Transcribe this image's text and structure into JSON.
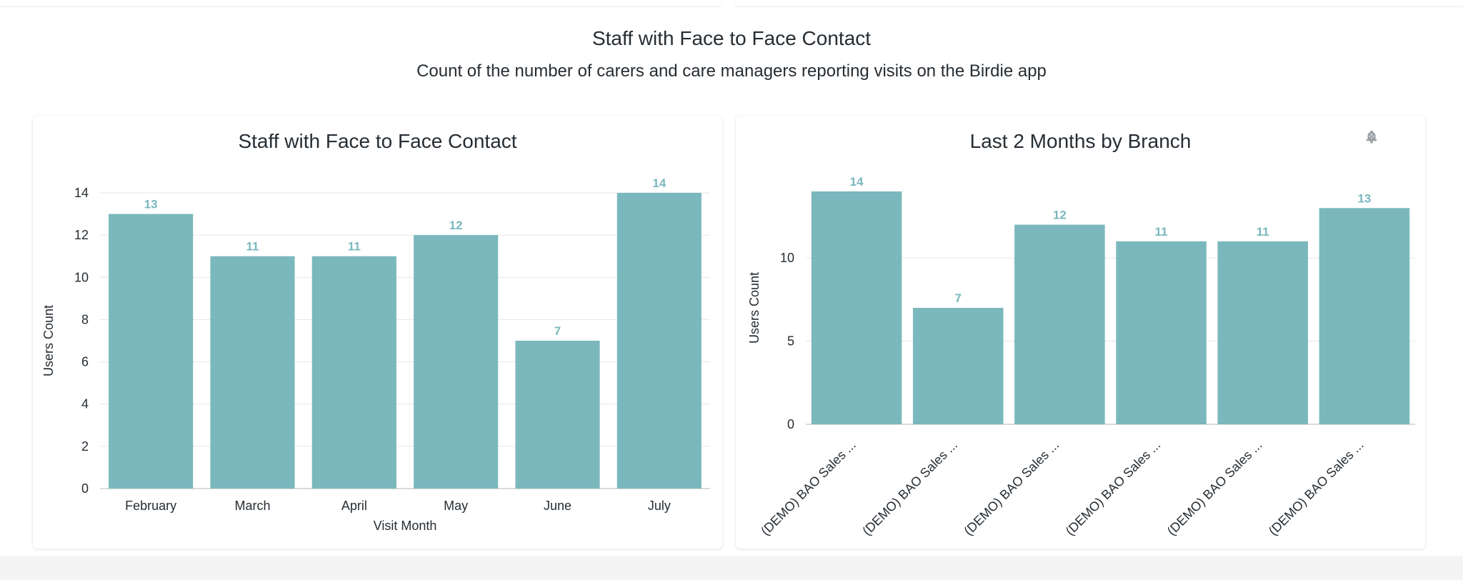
{
  "section": {
    "title": "Staff with Face to Face Contact",
    "subtitle": "Count of the number of carers and care managers reporting visits on the Birdie app"
  },
  "icons": {
    "alert": "bell-plus-icon",
    "menu": "vertical-dots-icon"
  },
  "colors": {
    "bar": "#7ab8bd",
    "label": "#7ab8bd",
    "grid": "#e6e6e6",
    "axis": "#cfcfcf"
  },
  "chart_data": [
    {
      "type": "bar",
      "title": "Staff with Face to Face Contact",
      "categories": [
        "February",
        "March",
        "April",
        "May",
        "June",
        "July"
      ],
      "values": [
        13,
        11,
        11,
        12,
        7,
        14
      ],
      "xlabel": "Visit Month",
      "ylabel": "Users Count",
      "ylim": [
        0,
        14
      ],
      "yticks": [
        0,
        2,
        4,
        6,
        8,
        10,
        12,
        14
      ],
      "grid": true
    },
    {
      "type": "bar",
      "title": "Last 2 Months by Branch",
      "categories": [
        "(DEMO) BAO Sales ...",
        "(DEMO) BAO Sales ...",
        "(DEMO) BAO Sales ...",
        "(DEMO) BAO Sales ...",
        "(DEMO) BAO Sales ...",
        "(DEMO) BAO Sales ..."
      ],
      "values": [
        14,
        7,
        12,
        11,
        11,
        13
      ],
      "xlabel": "",
      "ylabel": "Users Count",
      "ylim": [
        0,
        14
      ],
      "yticks": [
        0,
        5,
        10
      ],
      "grid": true
    }
  ]
}
